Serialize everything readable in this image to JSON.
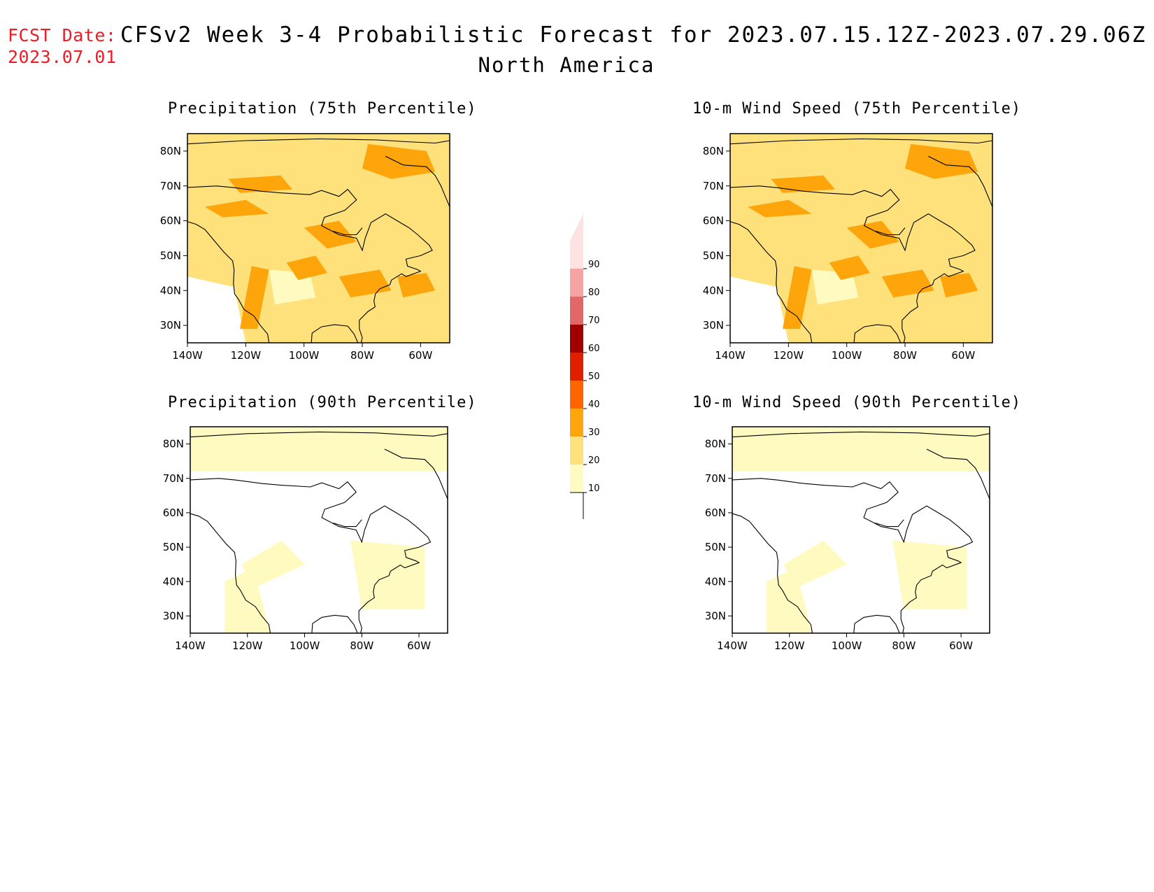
{
  "header": {
    "fcst_label": "FCST Date:",
    "fcst_date": "2023.07.01",
    "title": "CFSv2 Week 3-4 Probabilistic Forecast for 2023.07.15.12Z-2023.07.29.06Z",
    "subtitle": "North America"
  },
  "panels": [
    {
      "id": "precip75",
      "title": "Precipitation (75th Percentile)",
      "base_level": 20
    },
    {
      "id": "wind75",
      "title": "10-m Wind Speed (75th Percentile)",
      "base_level": 20
    },
    {
      "id": "precip90",
      "title": "Precipitation (90th Percentile)",
      "base_level": 0
    },
    {
      "id": "wind90",
      "title": "10-m Wind Speed (90th Percentile)",
      "base_level": 0
    }
  ],
  "axes": {
    "lat_labels": [
      "80N",
      "70N",
      "60N",
      "50N",
      "40N",
      "30N"
    ],
    "lat_values": [
      80,
      70,
      60,
      50,
      40,
      30
    ],
    "lon_labels": [
      "140W",
      "120W",
      "100W",
      "80W",
      "60W"
    ],
    "lon_values": [
      -140,
      -120,
      -100,
      -80,
      -60
    ],
    "lon_range": [
      -140,
      -50
    ],
    "lat_range": [
      25,
      85
    ]
  },
  "colorbar": {
    "levels": [
      10,
      20,
      30,
      40,
      50,
      60,
      70,
      80,
      90
    ],
    "labels": [
      "10",
      "20",
      "30",
      "40",
      "50",
      "60",
      "70",
      "80",
      "90"
    ],
    "colors": [
      "#fffbc0",
      "#fee17a",
      "#fea50b",
      "#fe6400",
      "#e01e00",
      "#a00000",
      "#e26767",
      "#f5a3a3",
      "#fde2e2"
    ]
  }
}
